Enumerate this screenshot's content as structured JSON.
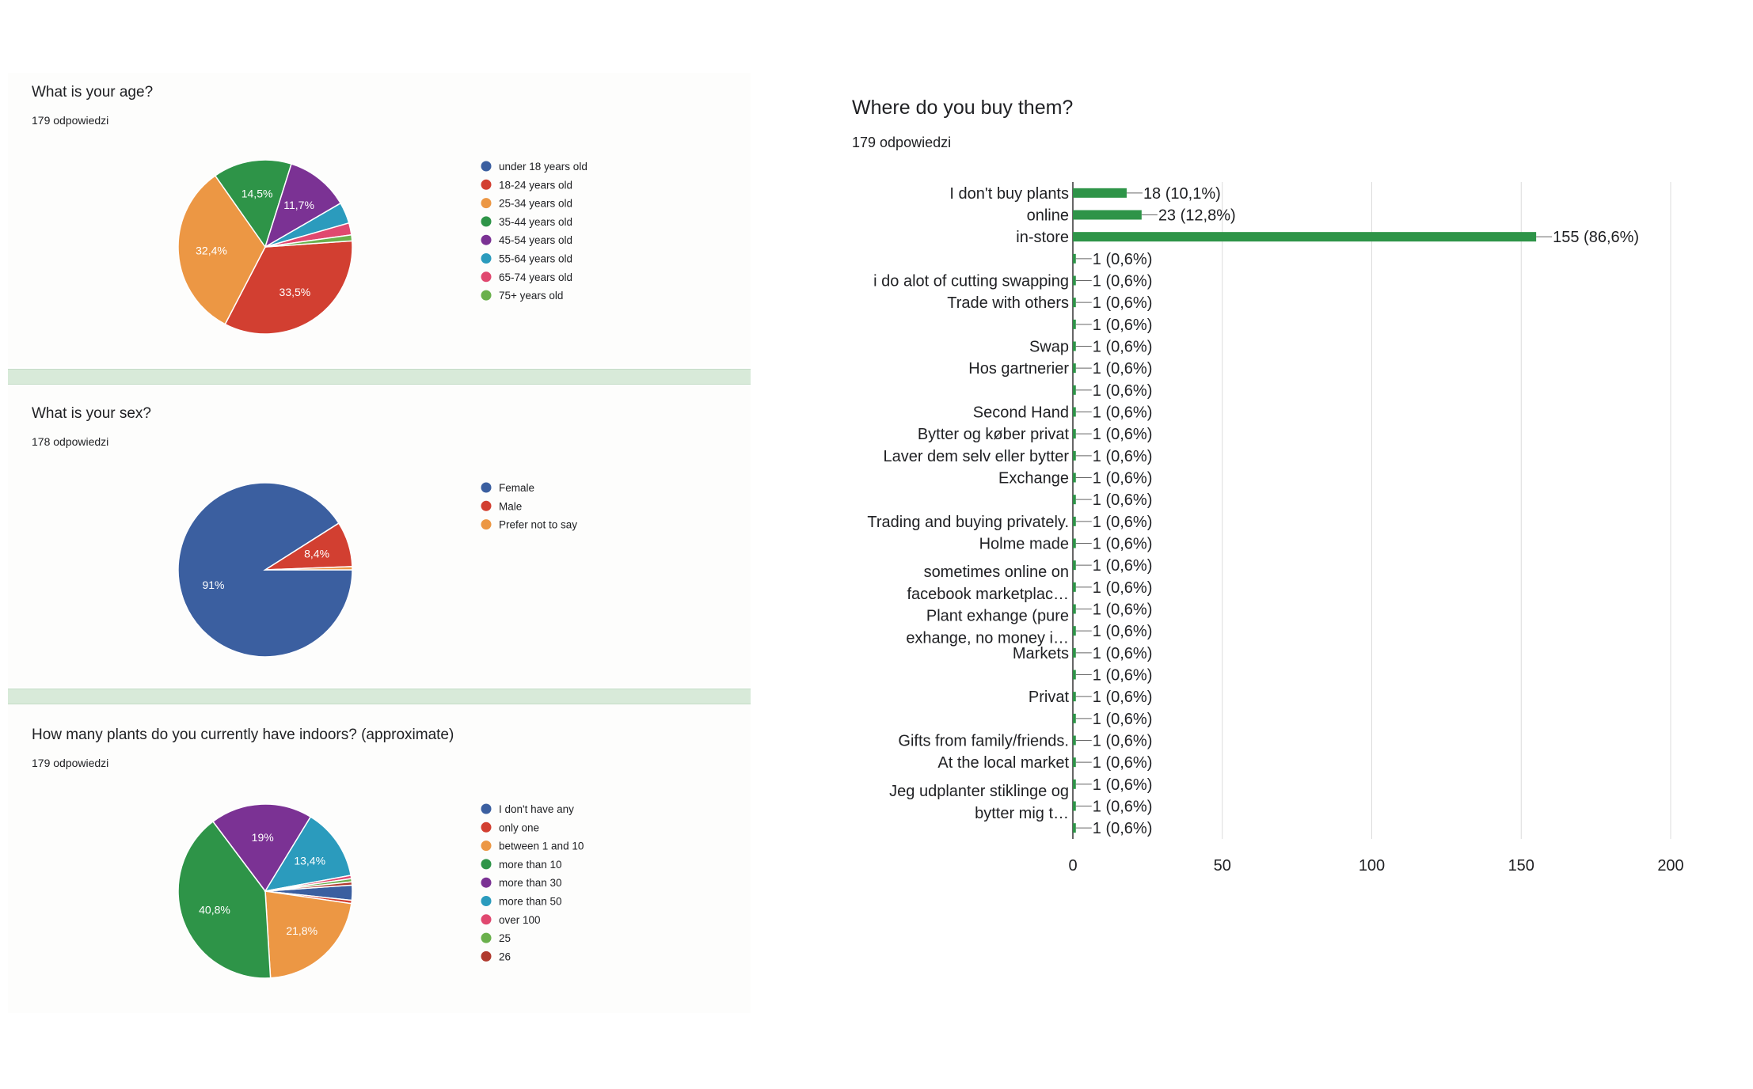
{
  "chart_data": [
    {
      "type": "pie",
      "title": "What is your age?",
      "subtitle": "179 odpowiedzi",
      "legend_position": "right",
      "slices": [
        {
          "label": "under 18 years old",
          "value": 0,
          "color": "#3b5fa0"
        },
        {
          "label": "18-24 years old",
          "value": 33.5,
          "color": "#d23f31",
          "display": "33,5%"
        },
        {
          "label": "25-34 years old",
          "value": 32.4,
          "color": "#ec9744",
          "display": "32,4%"
        },
        {
          "label": "35-44 years old",
          "value": 14.5,
          "color": "#2e9448",
          "display": "14,5%"
        },
        {
          "label": "45-54 years old",
          "value": 11.7,
          "color": "#7b3294",
          "display": "11,7%"
        },
        {
          "label": "55-64 years old",
          "value": 3.9,
          "color": "#2b9bbd"
        },
        {
          "label": "65-74 years old",
          "value": 2.2,
          "color": "#e0486f"
        },
        {
          "label": "75+ years old",
          "value": 1.1,
          "color": "#6ab04c"
        }
      ]
    },
    {
      "type": "pie",
      "title": "What is your sex?",
      "subtitle": "178 odpowiedzi",
      "legend_position": "right",
      "slices": [
        {
          "label": "Female",
          "value": 91.0,
          "color": "#3b5fa0",
          "display": "91%"
        },
        {
          "label": "Male",
          "value": 8.4,
          "color": "#d23f31",
          "display": "8,4%"
        },
        {
          "label": "Prefer not to say",
          "value": 0.6,
          "color": "#ec9744"
        }
      ]
    },
    {
      "type": "pie",
      "title": "How many plants do you currently have indoors? (approximate)",
      "subtitle": "179 odpowiedzi",
      "legend_position": "right",
      "slices": [
        {
          "label": "I don't have any",
          "value": 2.8,
          "color": "#3b5fa0"
        },
        {
          "label": "only one",
          "value": 0.6,
          "color": "#d23f31"
        },
        {
          "label": "between 1 and 10",
          "value": 21.8,
          "color": "#ec9744",
          "display": "21,8%"
        },
        {
          "label": "more than 10",
          "value": 40.8,
          "color": "#2e9448",
          "display": "40,8%"
        },
        {
          "label": "more than 30",
          "value": 19.0,
          "color": "#7b3294",
          "display": "19%"
        },
        {
          "label": "more than 50",
          "value": 13.4,
          "color": "#2b9bbd",
          "display": "13,4%"
        },
        {
          "label": "over 100",
          "value": 0.6,
          "color": "#e0486f"
        },
        {
          "label": "25",
          "value": 0.6,
          "color": "#6ab04c"
        },
        {
          "label": "26",
          "value": 0.6,
          "color": "#b03a2e"
        }
      ]
    },
    {
      "type": "bar",
      "orientation": "horizontal",
      "title": "Where do you buy them?",
      "subtitle": "179 odpowiedzi",
      "bar_color": "#2e9448",
      "xlim": [
        0,
        200
      ],
      "xticks": [
        0,
        50,
        100,
        150,
        200
      ],
      "grid": true,
      "categories": [
        [
          "I don't buy plants"
        ],
        [
          "online"
        ],
        [
          "in-store"
        ],
        [
          ""
        ],
        [
          "i do alot of cutting swapping"
        ],
        [
          "Trade with others"
        ],
        [
          ""
        ],
        [
          "Swap"
        ],
        [
          "Hos gartnerier"
        ],
        [
          ""
        ],
        [
          "Second Hand"
        ],
        [
          "Bytter og køber privat"
        ],
        [
          "Laver dem selv eller bytter"
        ],
        [
          "Exchange"
        ],
        [
          ""
        ],
        [
          "Trading and buying privately."
        ],
        [
          "Holme made"
        ],
        [
          "sometimes online on",
          "facebook marketplac…"
        ],
        [
          ""
        ],
        [
          "Plant exhange (pure",
          "exhange, no money i…"
        ],
        [
          ""
        ],
        [
          "Markets"
        ],
        [
          ""
        ],
        [
          "Privat"
        ],
        [
          ""
        ],
        [
          "Gifts from family/friends."
        ],
        [
          "At the local market"
        ],
        [
          "Jeg udplanter stiklinge og",
          "bytter mig t…"
        ],
        [
          ""
        ],
        [
          ""
        ]
      ],
      "values": [
        18,
        23,
        155,
        1,
        1,
        1,
        1,
        1,
        1,
        1,
        1,
        1,
        1,
        1,
        1,
        1,
        1,
        1,
        1,
        1,
        1,
        1,
        1,
        1,
        1,
        1,
        1,
        1,
        1,
        1
      ],
      "data_labels": [
        "18 (10,1%)",
        "23 (12,8%)",
        "155 (86,6%)",
        "1 (0,6%)",
        "1 (0,6%)",
        "1 (0,6%)",
        "1 (0,6%)",
        "1 (0,6%)",
        "1 (0,6%)",
        "1 (0,6%)",
        "1 (0,6%)",
        "1 (0,6%)",
        "1 (0,6%)",
        "1 (0,6%)",
        "1 (0,6%)",
        "1 (0,6%)",
        "1 (0,6%)",
        "1 (0,6%)",
        "1 (0,6%)",
        "1 (0,6%)",
        "1 (0,6%)",
        "1 (0,6%)",
        "1 (0,6%)",
        "1 (0,6%)",
        "1 (0,6%)",
        "1 (0,6%)",
        "1 (0,6%)",
        "1 (0,6%)",
        "1 (0,6%)",
        "1 (0,6%)"
      ]
    }
  ]
}
